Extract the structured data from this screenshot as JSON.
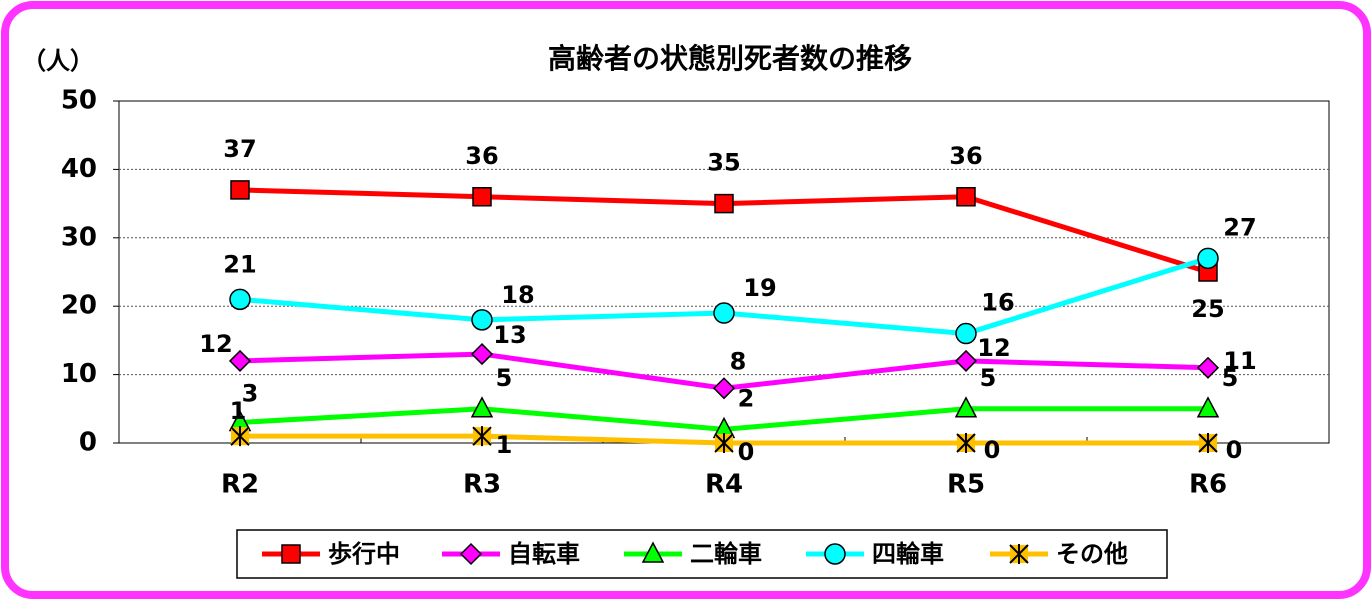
{
  "chart_data": {
    "type": "line",
    "title": "高齢者の状態別死者数の推移",
    "y_label": "（人）",
    "categories": [
      "R2",
      "R3",
      "R4",
      "R5",
      "R6"
    ],
    "ylim": [
      0,
      50
    ],
    "yticks": [
      0,
      10,
      20,
      30,
      40,
      50
    ],
    "grid": true,
    "series": [
      {
        "name": "歩行中",
        "color": "#ff0000",
        "marker": "square",
        "values": [
          37,
          36,
          35,
          36,
          25
        ]
      },
      {
        "name": "自転車",
        "color": "#ff00ff",
        "marker": "diamond",
        "values": [
          12,
          13,
          8,
          12,
          11
        ]
      },
      {
        "name": "二輪車",
        "color": "#00ff00",
        "marker": "triangle",
        "values": [
          3,
          5,
          2,
          5,
          5
        ]
      },
      {
        "name": "四輪車",
        "color": "#00ffff",
        "marker": "circle",
        "values": [
          21,
          18,
          19,
          16,
          27
        ]
      },
      {
        "name": "その他",
        "color": "#ffc000",
        "marker": "asterisk",
        "values": [
          1,
          1,
          0,
          0,
          0
        ]
      }
    ]
  }
}
